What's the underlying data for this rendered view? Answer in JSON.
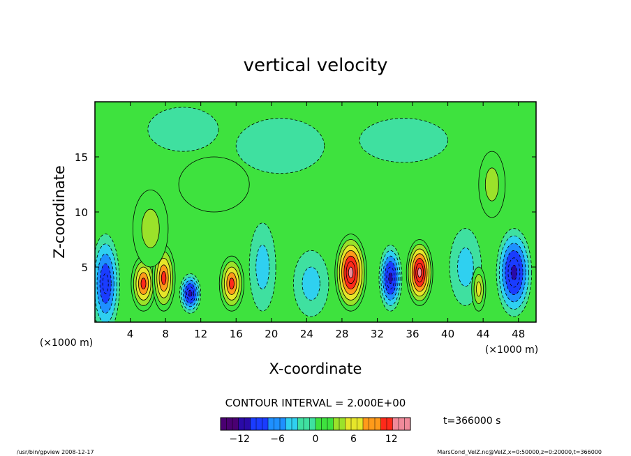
{
  "chart_data": {
    "type": "heatmap",
    "title": "vertical velocity",
    "xlabel": "X-coordinate",
    "ylabel": "Z-coordinate",
    "x_unit_left": "(×1000 m)",
    "x_unit_right": "(×1000 m)",
    "xlim": [
      0,
      50
    ],
    "ylim": [
      0,
      20
    ],
    "x_ticks": [
      4,
      8,
      12,
      16,
      20,
      24,
      28,
      32,
      36,
      40,
      44,
      48
    ],
    "y_ticks": [
      5,
      10,
      15
    ],
    "contour_interval_text": "CONTOUR INTERVAL = 2.000E+00",
    "time_text": "t=366000 s",
    "colorbar": {
      "min": -15,
      "max": 15,
      "ticks": [
        -12,
        -6,
        0,
        6,
        12
      ],
      "colors": [
        "#4a0072",
        "#2a0aa8",
        "#1a3cff",
        "#1e90ff",
        "#2fd0f0",
        "#3fe0a0",
        "#3ee23e",
        "#9be22a",
        "#e6e62a",
        "#ff9a1a",
        "#ff2a1a",
        "#f08a9a"
      ]
    },
    "cells": [
      {
        "x": 1.2,
        "z": 3.5,
        "sx": 1.6,
        "sz": 4.5,
        "v": -9
      },
      {
        "x": 5.5,
        "z": 3.5,
        "sx": 1.4,
        "sz": 2.5,
        "v": 9
      },
      {
        "x": 7.8,
        "z": 4.0,
        "sx": 1.3,
        "sz": 3.0,
        "v": 9
      },
      {
        "x": 6.3,
        "z": 8.5,
        "sx": 2.0,
        "sz": 3.5,
        "v": 4
      },
      {
        "x": 10.8,
        "z": 2.6,
        "sx": 1.2,
        "sz": 1.8,
        "v": -12
      },
      {
        "x": 15.5,
        "z": 3.5,
        "sx": 1.4,
        "sz": 2.5,
        "v": 10
      },
      {
        "x": 19.0,
        "z": 5.0,
        "sx": 1.5,
        "sz": 4.0,
        "v": -4
      },
      {
        "x": 24.5,
        "z": 3.5,
        "sx": 2.0,
        "sz": 3.0,
        "v": -4
      },
      {
        "x": 29.0,
        "z": 4.5,
        "sx": 1.8,
        "sz": 3.5,
        "v": 13
      },
      {
        "x": 33.5,
        "z": 4.0,
        "sx": 1.3,
        "sz": 3.0,
        "v": -12
      },
      {
        "x": 36.8,
        "z": 4.5,
        "sx": 1.5,
        "sz": 3.0,
        "v": 13
      },
      {
        "x": 42.0,
        "z": 5.0,
        "sx": 1.8,
        "sz": 3.5,
        "v": -4
      },
      {
        "x": 43.5,
        "z": 3.0,
        "sx": 0.8,
        "sz": 2.0,
        "v": 6
      },
      {
        "x": 47.5,
        "z": 4.5,
        "sx": 2.0,
        "sz": 4.0,
        "v": -12
      },
      {
        "x": 45.0,
        "z": 12.5,
        "sx": 1.5,
        "sz": 3.0,
        "v": 3
      },
      {
        "x": 13.5,
        "z": 12.5,
        "sx": 4.0,
        "sz": 2.5,
        "v": 2
      },
      {
        "x": 21.0,
        "z": 16.0,
        "sx": 5.0,
        "sz": 2.5,
        "v": -2
      },
      {
        "x": 35.0,
        "z": 16.5,
        "sx": 5.0,
        "sz": 2.0,
        "v": -2
      },
      {
        "x": 10.0,
        "z": 17.5,
        "sx": 4.0,
        "sz": 2.0,
        "v": -2
      }
    ]
  },
  "footer": {
    "left": "/usr/bin/gpview 2008-12-17",
    "right": "MarsCond_VelZ.nc@VelZ,x=0:50000,z=0:20000,t=366000"
  }
}
